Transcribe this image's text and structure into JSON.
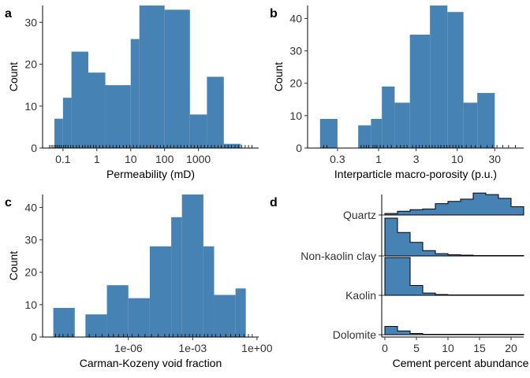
{
  "bar_color": "#4682B4",
  "chart_data": [
    {
      "id": "a",
      "type": "bar",
      "panel_label": "a",
      "xlabel": "Permeability (mD)",
      "ylabel": "Count",
      "x_scale": "log10",
      "xlim": [
        0.025,
        60000
      ],
      "ylim": [
        0,
        34
      ],
      "xticks": [
        0.1,
        1,
        10,
        100,
        1000
      ],
      "xtick_labels": [
        "0.1",
        "1",
        "10",
        "100",
        "1000"
      ],
      "yticks": [
        0,
        10,
        20,
        30
      ],
      "ytick_labels": [
        "0",
        "10",
        "20",
        "30"
      ],
      "bins": [
        {
          "from": 0.056,
          "to": 0.1,
          "count": 7
        },
        {
          "from": 0.1,
          "to": 0.178,
          "count": 12
        },
        {
          "from": 0.178,
          "to": 0.56,
          "count": 23
        },
        {
          "from": 0.56,
          "to": 1.78,
          "count": 18
        },
        {
          "from": 1.78,
          "to": 10,
          "count": 15
        },
        {
          "from": 10,
          "to": 18,
          "count": 26
        },
        {
          "from": 18,
          "to": 100,
          "count": 34
        },
        {
          "from": 100,
          "to": 560,
          "count": 33
        },
        {
          "from": 560,
          "to": 1780,
          "count": 8
        },
        {
          "from": 1780,
          "to": 5600,
          "count": 17
        },
        {
          "from": 5600,
          "to": 17800,
          "count": 1
        }
      ],
      "rug": [
        0.04,
        0.045,
        0.05,
        0.056,
        0.062,
        0.07,
        0.08,
        0.09,
        0.105,
        0.12,
        0.14,
        0.17,
        0.2,
        0.25,
        0.3,
        0.38,
        0.45,
        0.55,
        0.65,
        0.8,
        0.95,
        1.2,
        1.5,
        1.9,
        2.4,
        3,
        3.8,
        4.7,
        6,
        7.5,
        9.5,
        12,
        15,
        19,
        24,
        30,
        38,
        47,
        60,
        75,
        95,
        120,
        150,
        190,
        240,
        300,
        380,
        470,
        600,
        750,
        950,
        1200,
        1500,
        1900,
        2400,
        3000,
        3800,
        4700,
        6000,
        7500,
        9500,
        12000,
        15000,
        19000,
        24000,
        30000,
        38000
      ]
    },
    {
      "id": "b",
      "type": "bar",
      "panel_label": "b",
      "xlabel": "Interparticle macro-porosity (p.u.)",
      "ylabel": "Count",
      "x_scale": "log10",
      "xlim": [
        0.125,
        70
      ],
      "ylim": [
        0,
        44
      ],
      "xticks": [
        0.3,
        1,
        3,
        10,
        30
      ],
      "xtick_labels": [
        "0.3",
        "1",
        "3",
        "10",
        "30"
      ],
      "yticks": [
        0,
        10,
        20,
        30,
        40
      ],
      "ytick_labels": [
        "0",
        "10",
        "20",
        "30",
        "40"
      ],
      "bins": [
        {
          "from": 0.18,
          "to": 0.3,
          "count": 9
        },
        {
          "from": 0.55,
          "to": 0.8,
          "count": 7
        },
        {
          "from": 0.8,
          "to": 1.1,
          "count": 9
        },
        {
          "from": 1.1,
          "to": 1.6,
          "count": 19
        },
        {
          "from": 1.6,
          "to": 2.5,
          "count": 14
        },
        {
          "from": 2.5,
          "to": 4.5,
          "count": 35
        },
        {
          "from": 4.5,
          "to": 7.5,
          "count": 44
        },
        {
          "from": 7.5,
          "to": 12,
          "count": 42
        },
        {
          "from": 12,
          "to": 18,
          "count": 14
        },
        {
          "from": 18,
          "to": 30,
          "count": 17
        }
      ],
      "rug": [
        0.2,
        0.22,
        0.6,
        0.65,
        0.7,
        0.75,
        0.85,
        0.9,
        0.95,
        1.05,
        1.15,
        1.3,
        1.45,
        1.7,
        1.9,
        2.1,
        2.3,
        2.7,
        3,
        3.3,
        3.6,
        4,
        4.4,
        4.8,
        5.2,
        5.7,
        6.2,
        6.8,
        7.4,
        8,
        8.8,
        9.6,
        10.5,
        11.5,
        13,
        15,
        17,
        20,
        24,
        28,
        32,
        38,
        45,
        55
      ]
    },
    {
      "id": "c",
      "type": "bar",
      "panel_label": "c",
      "xlabel": "Carman-Kozeny void fraction",
      "ylabel": "Count",
      "x_scale": "log10",
      "xlim": [
        1e-10,
        1.2
      ],
      "ylim": [
        0,
        44
      ],
      "xticks": [
        1e-06,
        0.001,
        1
      ],
      "xtick_labels": [
        "1e-06",
        "1e-03",
        "1e+00"
      ],
      "yticks": [
        0,
        10,
        20,
        30,
        40
      ],
      "ytick_labels": [
        "0",
        "10",
        "20",
        "30",
        "40"
      ],
      "bins": [
        {
          "from": 3.16e-10,
          "to": 3.16e-09,
          "count": 9
        },
        {
          "from": 1e-08,
          "to": 1e-07,
          "count": 7
        },
        {
          "from": 1e-07,
          "to": 1e-06,
          "count": 16
        },
        {
          "from": 1e-06,
          "to": 1e-05,
          "count": 12
        },
        {
          "from": 1e-05,
          "to": 0.0001,
          "count": 28
        },
        {
          "from": 0.0001,
          "to": 0.000316,
          "count": 37
        },
        {
          "from": 0.000316,
          "to": 0.00316,
          "count": 44
        },
        {
          "from": 0.00316,
          "to": 0.01,
          "count": 28
        },
        {
          "from": 0.01,
          "to": 0.1,
          "count": 13
        },
        {
          "from": 0.1,
          "to": 0.3,
          "count": 15
        }
      ],
      "rug": [
        4e-10,
        6e-10,
        9e-10,
        1.5e-09,
        2.5e-09,
        1.5e-08,
        3e-08,
        6e-08,
        1.2e-07,
        2e-07,
        3.5e-07,
        6e-07,
        9e-07,
        1.5e-06,
        3e-06,
        6e-06,
        1.2e-05,
        2.5e-05,
        5e-05,
        8e-05,
        0.00012,
        0.0002,
        0.0003,
        0.00045,
        0.0007,
        0.001,
        0.0015,
        0.0022,
        0.0035,
        0.005,
        0.008,
        0.012,
        0.02,
        0.035,
        0.06,
        0.1,
        0.15,
        0.25,
        0.4,
        0.6
      ]
    },
    {
      "id": "d",
      "type": "area",
      "panel_label": "d",
      "xlabel": "Cement percent abundance",
      "xlim": [
        -0.5,
        22
      ],
      "xticks": [
        0,
        5,
        10,
        15,
        20
      ],
      "xtick_labels": [
        "0",
        "5",
        "10",
        "15",
        "20"
      ],
      "bin_edges": [
        0,
        2,
        4,
        6,
        8,
        10,
        12,
        14,
        16,
        18,
        20,
        22
      ],
      "series": [
        {
          "name": "Quartz",
          "values": [
            0.04,
            0.1,
            0.14,
            0.16,
            0.3,
            0.36,
            0.42,
            0.58,
            0.54,
            0.44,
            0.22
          ]
        },
        {
          "name": "Non-kaolin clay",
          "values": [
            1.0,
            0.62,
            0.36,
            0.14,
            0.06,
            0.03,
            0.02,
            0.01,
            0.01,
            0.01,
            0.01
          ]
        },
        {
          "name": "Kaolin",
          "values": [
            1.0,
            1.0,
            0.26,
            0.06,
            0.02,
            0.01,
            0.01,
            0.01,
            0.01,
            0.01,
            0.01
          ]
        },
        {
          "name": "Dolomite",
          "values": [
            0.22,
            0.1,
            0.03,
            0.01,
            0.01,
            0.01,
            0.01,
            0.01,
            0.01,
            0.01,
            0.01
          ]
        }
      ]
    }
  ]
}
